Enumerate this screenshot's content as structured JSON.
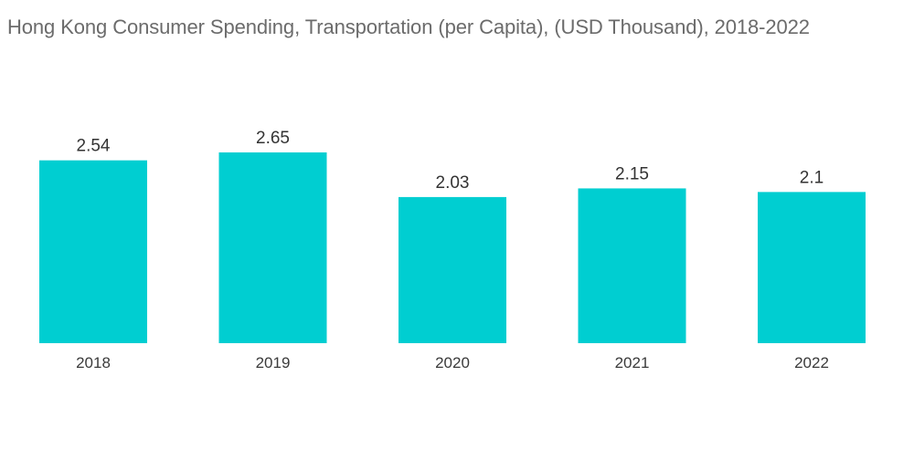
{
  "chart_data": {
    "type": "bar",
    "title": "Hong Kong Consumer Spending, Transportation (per Capita), (USD Thousand), 2018-2022",
    "categories": [
      "2018",
      "2019",
      "2020",
      "2021",
      "2022"
    ],
    "values": [
      2.54,
      2.65,
      2.03,
      2.15,
      2.1
    ],
    "value_labels": [
      "2.54",
      "2.65",
      "2.03",
      "2.15",
      "2.1"
    ],
    "xlabel": "",
    "ylabel": "",
    "ylim": [
      0,
      2.65
    ],
    "grid": false,
    "legend": "none",
    "bar_color": "#00ced1"
  }
}
